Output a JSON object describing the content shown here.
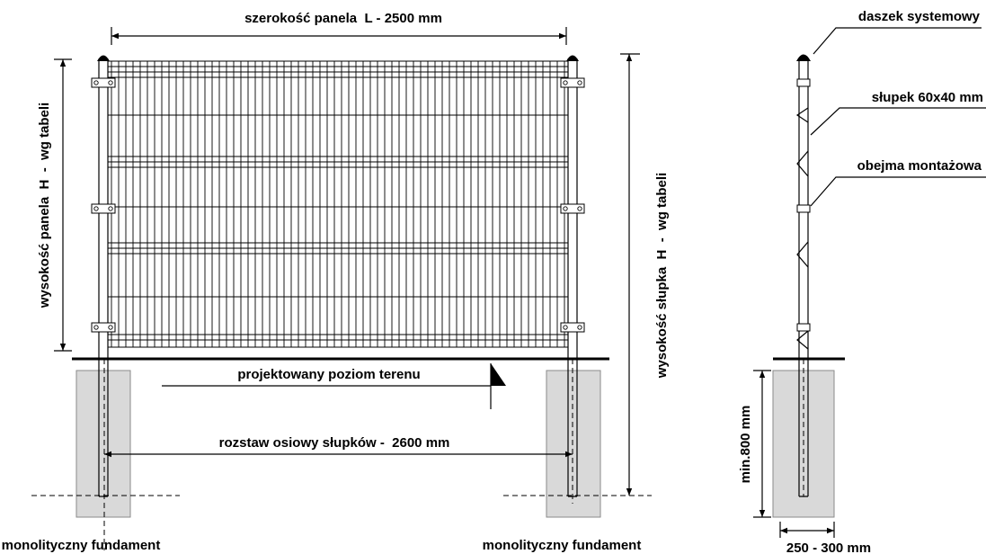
{
  "front_view": {
    "panel_width_label": "szerokość panela  L - 2500 mm",
    "panel_height_label": "wysokość panela  H  -  wg tabeli",
    "post_height_label": "wysokość słupka  H  -  wg tabeli",
    "ground_level_label": "projektowany poziom terenu",
    "post_spacing_label": "rozstaw osiowy słupków -  2600 mm",
    "foundation_left_label": "monolityczny fundament",
    "foundation_right_label": "monolityczny fundament"
  },
  "side_view": {
    "cap_label": "daszek systemowy",
    "post_label": "słupek 60x40 mm",
    "clamp_label": "obejma montażowa",
    "embed_depth_label": "min.800 mm",
    "foundation_width_label": "250 - 300 mm"
  },
  "colors": {
    "line": "#000000",
    "foundation": "#d9d9d9",
    "background": "#ffffff"
  }
}
